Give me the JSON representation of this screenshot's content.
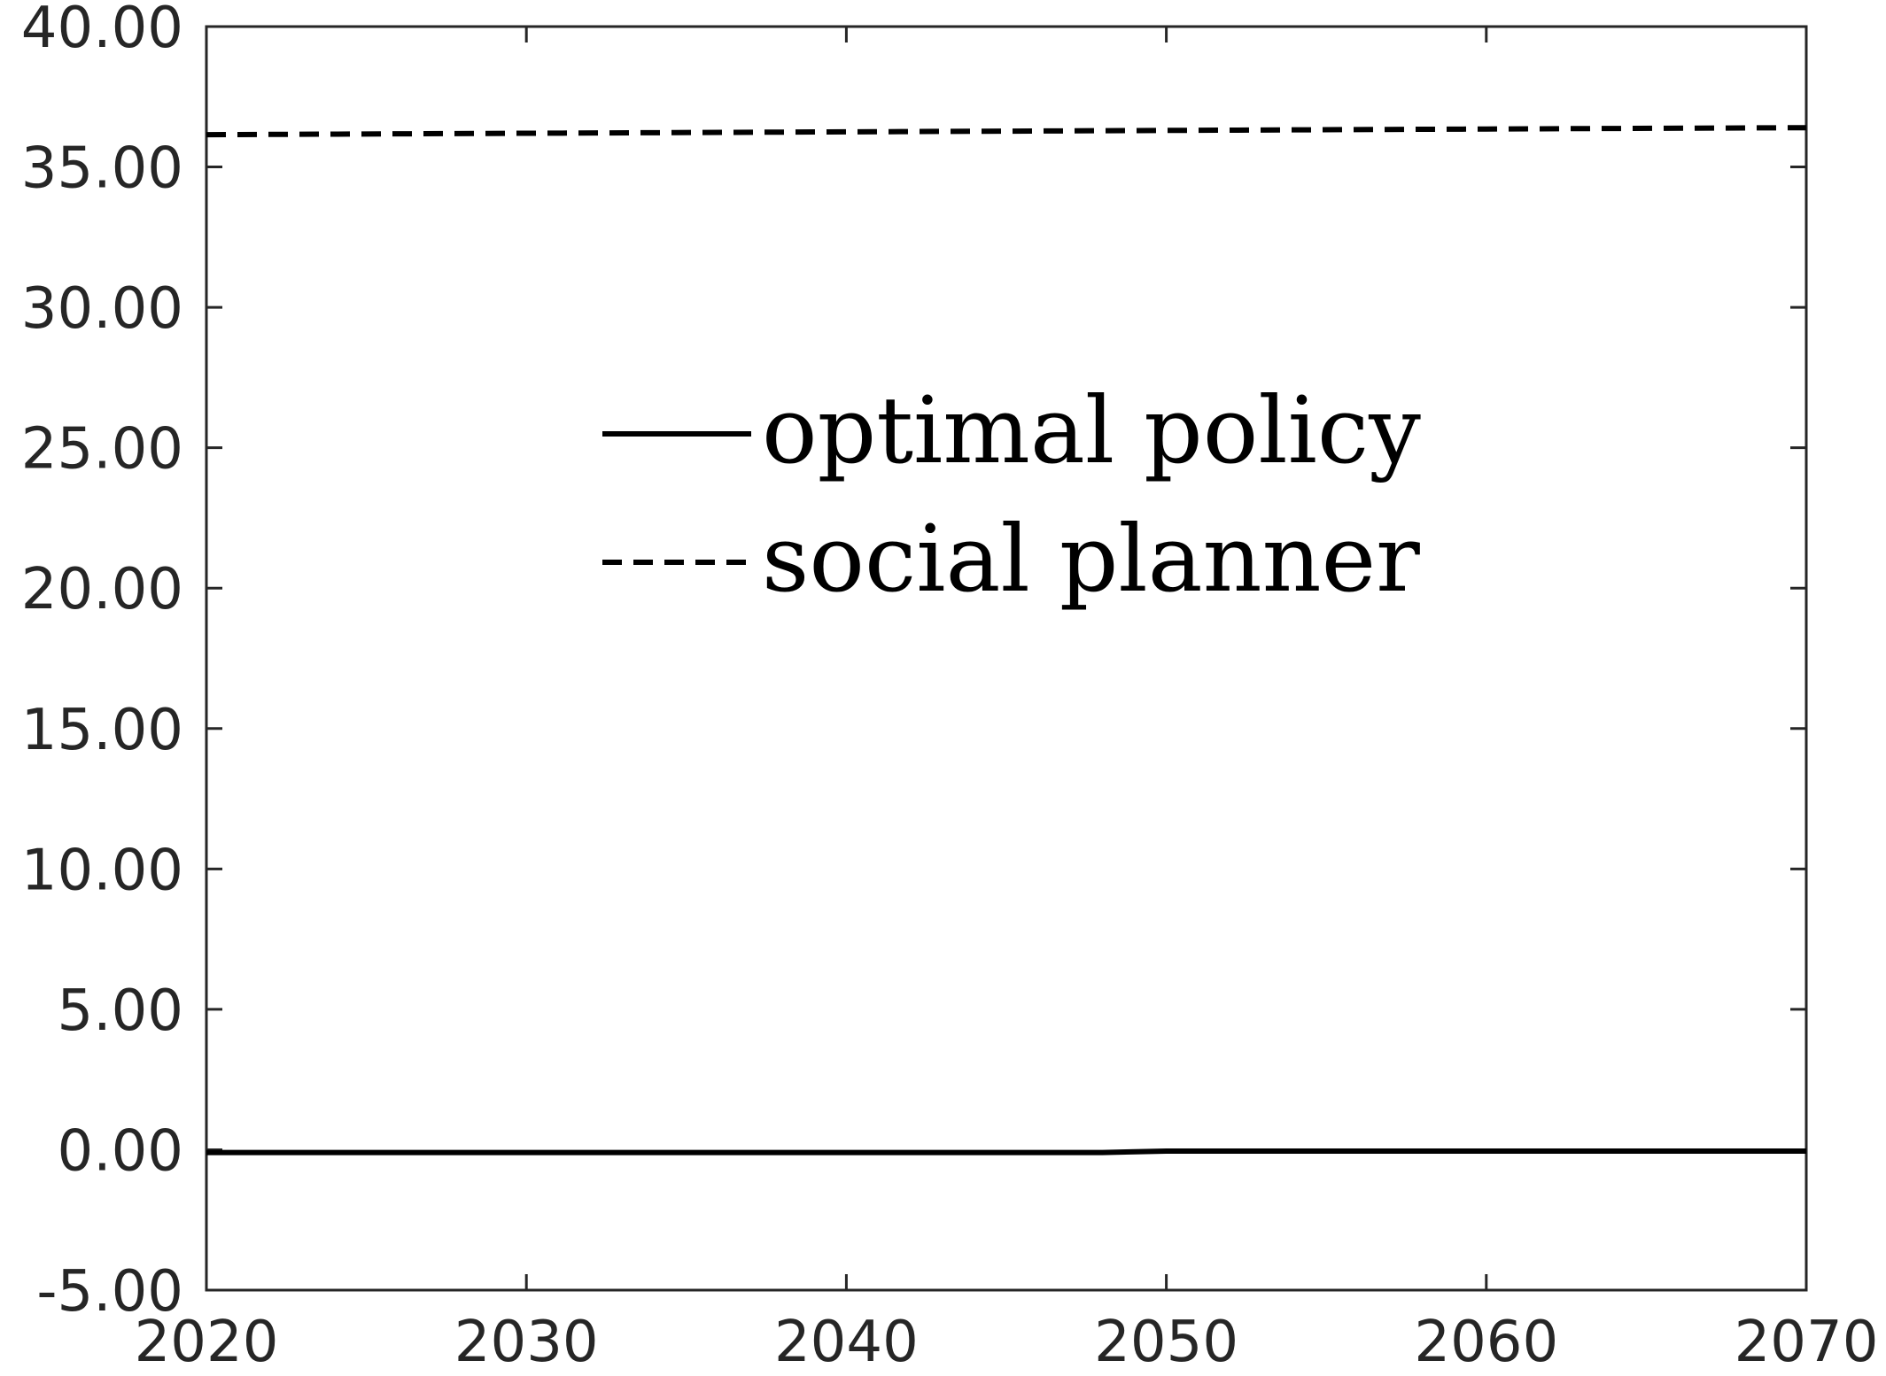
{
  "chart_data": {
    "type": "line",
    "title": "",
    "xlabel": "",
    "ylabel": "",
    "xlim": [
      2020,
      2070
    ],
    "ylim": [
      -5,
      40
    ],
    "x_ticks": [
      "2020",
      "2030",
      "2040",
      "2050",
      "2060",
      "2070"
    ],
    "y_ticks": [
      "-5.00",
      "0.00",
      "5.00",
      "10.00",
      "15.00",
      "20.00",
      "25.00",
      "30.00",
      "35.00",
      "40.00"
    ],
    "grid": false,
    "legend_position": "upper-center",
    "series": [
      {
        "name": "optimal policy",
        "style": "solid",
        "color": "#000000",
        "x": [
          2020,
          2030,
          2040,
          2048,
          2050,
          2060,
          2070
        ],
        "y": [
          -0.1,
          -0.1,
          -0.1,
          -0.1,
          -0.05,
          -0.05,
          -0.05
        ]
      },
      {
        "name": "social planner",
        "style": "dashed",
        "color": "#000000",
        "x": [
          2020,
          2030,
          2040,
          2050,
          2060,
          2070
        ],
        "y": [
          36.15,
          36.2,
          36.25,
          36.3,
          36.35,
          36.4
        ]
      }
    ]
  }
}
